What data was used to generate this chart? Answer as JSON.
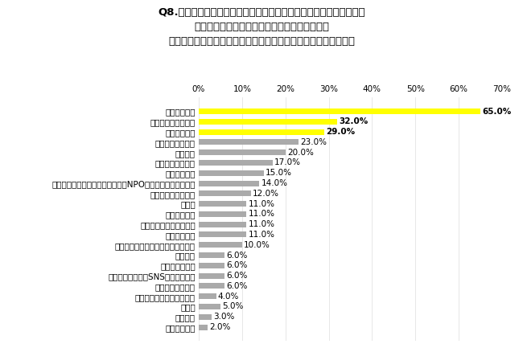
{
  "title_lines": [
    "Q8.現在の保育園を選ぶ上で、決め手となった項目を教えて下さい。",
    "保育園に通っているお子様が複数いる場合は、",
    "直近に入園されたお子様についてお答えください。（複数選択）"
  ],
  "categories": [
    "家からの距離",
    "子ども同士の雰囲気",
    "認可・認可外",
    "保育職員の雰囲気",
    "保育時間",
    "保育カリキュラム",
    "保育園の広さ",
    "運営母体（公立、社会福祉法人・NPO法人、株式会社など）",
    "保育理念・保育方針",
    "清潔感",
    "保育士の人数",
    "保育職員と園児の雰囲気",
    "園内の清潔感",
    "ご近所さん・先輩ママからの口コミ",
    "教育方針",
    "慣れ保育の有無",
    "インターネット・SNS等での口コミ",
    "園長先生の雰囲気",
    "公式サイト・チラシの仕様",
    "その他",
    "特になし",
    "答えたくない"
  ],
  "values": [
    65.0,
    32.0,
    29.0,
    23.0,
    20.0,
    17.0,
    15.0,
    14.0,
    12.0,
    11.0,
    11.0,
    11.0,
    11.0,
    10.0,
    6.0,
    6.0,
    6.0,
    6.0,
    4.0,
    5.0,
    3.0,
    2.0
  ],
  "bar_colors": [
    "#FFFF00",
    "#FFFF00",
    "#FFFF00",
    "#AAAAAA",
    "#AAAAAA",
    "#AAAAAA",
    "#AAAAAA",
    "#AAAAAA",
    "#AAAAAA",
    "#AAAAAA",
    "#AAAAAA",
    "#AAAAAA",
    "#AAAAAA",
    "#AAAAAA",
    "#AAAAAA",
    "#AAAAAA",
    "#AAAAAA",
    "#AAAAAA",
    "#AAAAAA",
    "#AAAAAA",
    "#AAAAAA",
    "#AAAAAA"
  ],
  "xlim": [
    0,
    70
  ],
  "xticks": [
    0,
    10,
    20,
    30,
    40,
    50,
    60,
    70
  ],
  "bg_color": "#FFFFFF",
  "bar_height": 0.55,
  "title_fontsize": 9.5,
  "label_fontsize": 7.5,
  "value_fontsize": 7.5,
  "tick_fontsize": 7.5,
  "top_three_bold": true
}
